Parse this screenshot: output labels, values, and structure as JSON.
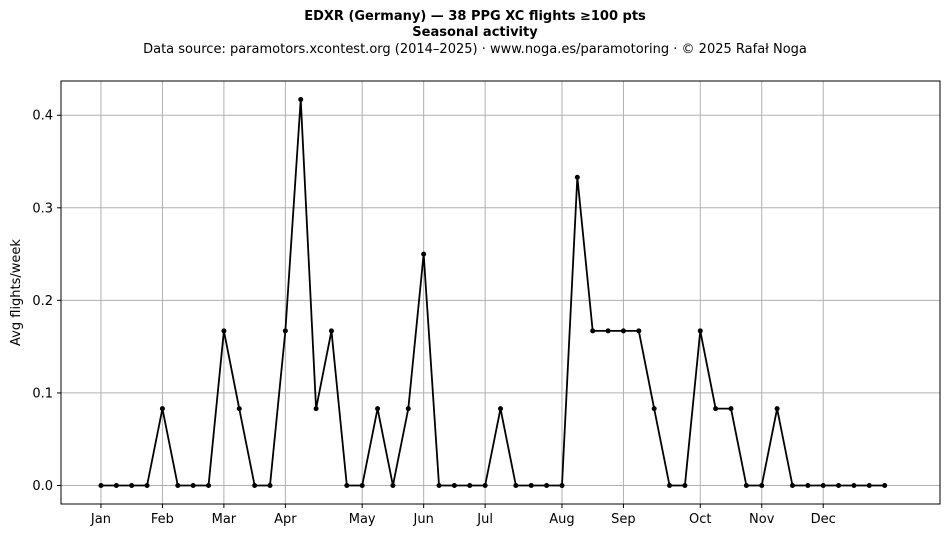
{
  "header": {
    "title": "EDXR (Germany)  —  38 PPG XC flights ≥100 pts",
    "subtitle": "Seasonal activity",
    "source": "Data source: paramotors.xcontest.org (2014–2025)  ·  www.noga.es/paramotoring  ·  © 2025 Rafał Noga"
  },
  "chart_data": {
    "type": "line",
    "title": "EDXR (Germany)  —  38 PPG XC flights ≥100 pts",
    "subtitle": "Seasonal activity",
    "xlabel": "",
    "ylabel": "Avg flights/week",
    "x_unit": "week of year",
    "xlim": [
      -2.6,
      54.6
    ],
    "ylim": [
      -0.02,
      0.437
    ],
    "grid": true,
    "line_color": "#000000",
    "grid_color": "#b0b0b0",
    "x_ticks": [
      {
        "label": "Jan",
        "week": 0
      },
      {
        "label": "Feb",
        "week": 4
      },
      {
        "label": "Mar",
        "week": 8
      },
      {
        "label": "Apr",
        "week": 12
      },
      {
        "label": "May",
        "week": 17
      },
      {
        "label": "Jun",
        "week": 21
      },
      {
        "label": "Jul",
        "week": 25
      },
      {
        "label": "Aug",
        "week": 30
      },
      {
        "label": "Sep",
        "week": 34
      },
      {
        "label": "Oct",
        "week": 39
      },
      {
        "label": "Nov",
        "week": 43
      },
      {
        "label": "Dec",
        "week": 47
      }
    ],
    "y_ticks": [
      {
        "label": "0.0",
        "value": 0.0
      },
      {
        "label": "0.1",
        "value": 0.1
      },
      {
        "label": "0.2",
        "value": 0.2
      },
      {
        "label": "0.3",
        "value": 0.3
      },
      {
        "label": "0.4",
        "value": 0.4
      }
    ],
    "series": [
      {
        "x": [
          0,
          1,
          2,
          3,
          4,
          5,
          6,
          7,
          8,
          9,
          10,
          11,
          12,
          13,
          14,
          15,
          16,
          17,
          18,
          19,
          20,
          21,
          22,
          23,
          24,
          25,
          26,
          27,
          28,
          29,
          30,
          31,
          32,
          33,
          34,
          35,
          36,
          37,
          38,
          39,
          40,
          41,
          42,
          43,
          44,
          45,
          46,
          47,
          48,
          49,
          50,
          51
        ],
        "values": [
          0,
          0,
          0,
          0,
          0.083,
          0,
          0,
          0,
          0.167,
          0.083,
          0,
          0,
          0.167,
          0.417,
          0.083,
          0.167,
          0,
          0,
          0.083,
          0,
          0.083,
          0.25,
          0,
          0,
          0,
          0,
          0.083,
          0,
          0,
          0,
          0,
          0.333,
          0.167,
          0.167,
          0.167,
          0.167,
          0.083,
          0,
          0,
          0.167,
          0.083,
          0.083,
          0,
          0,
          0.083,
          0,
          0,
          0,
          0,
          0,
          0,
          0
        ]
      }
    ]
  }
}
